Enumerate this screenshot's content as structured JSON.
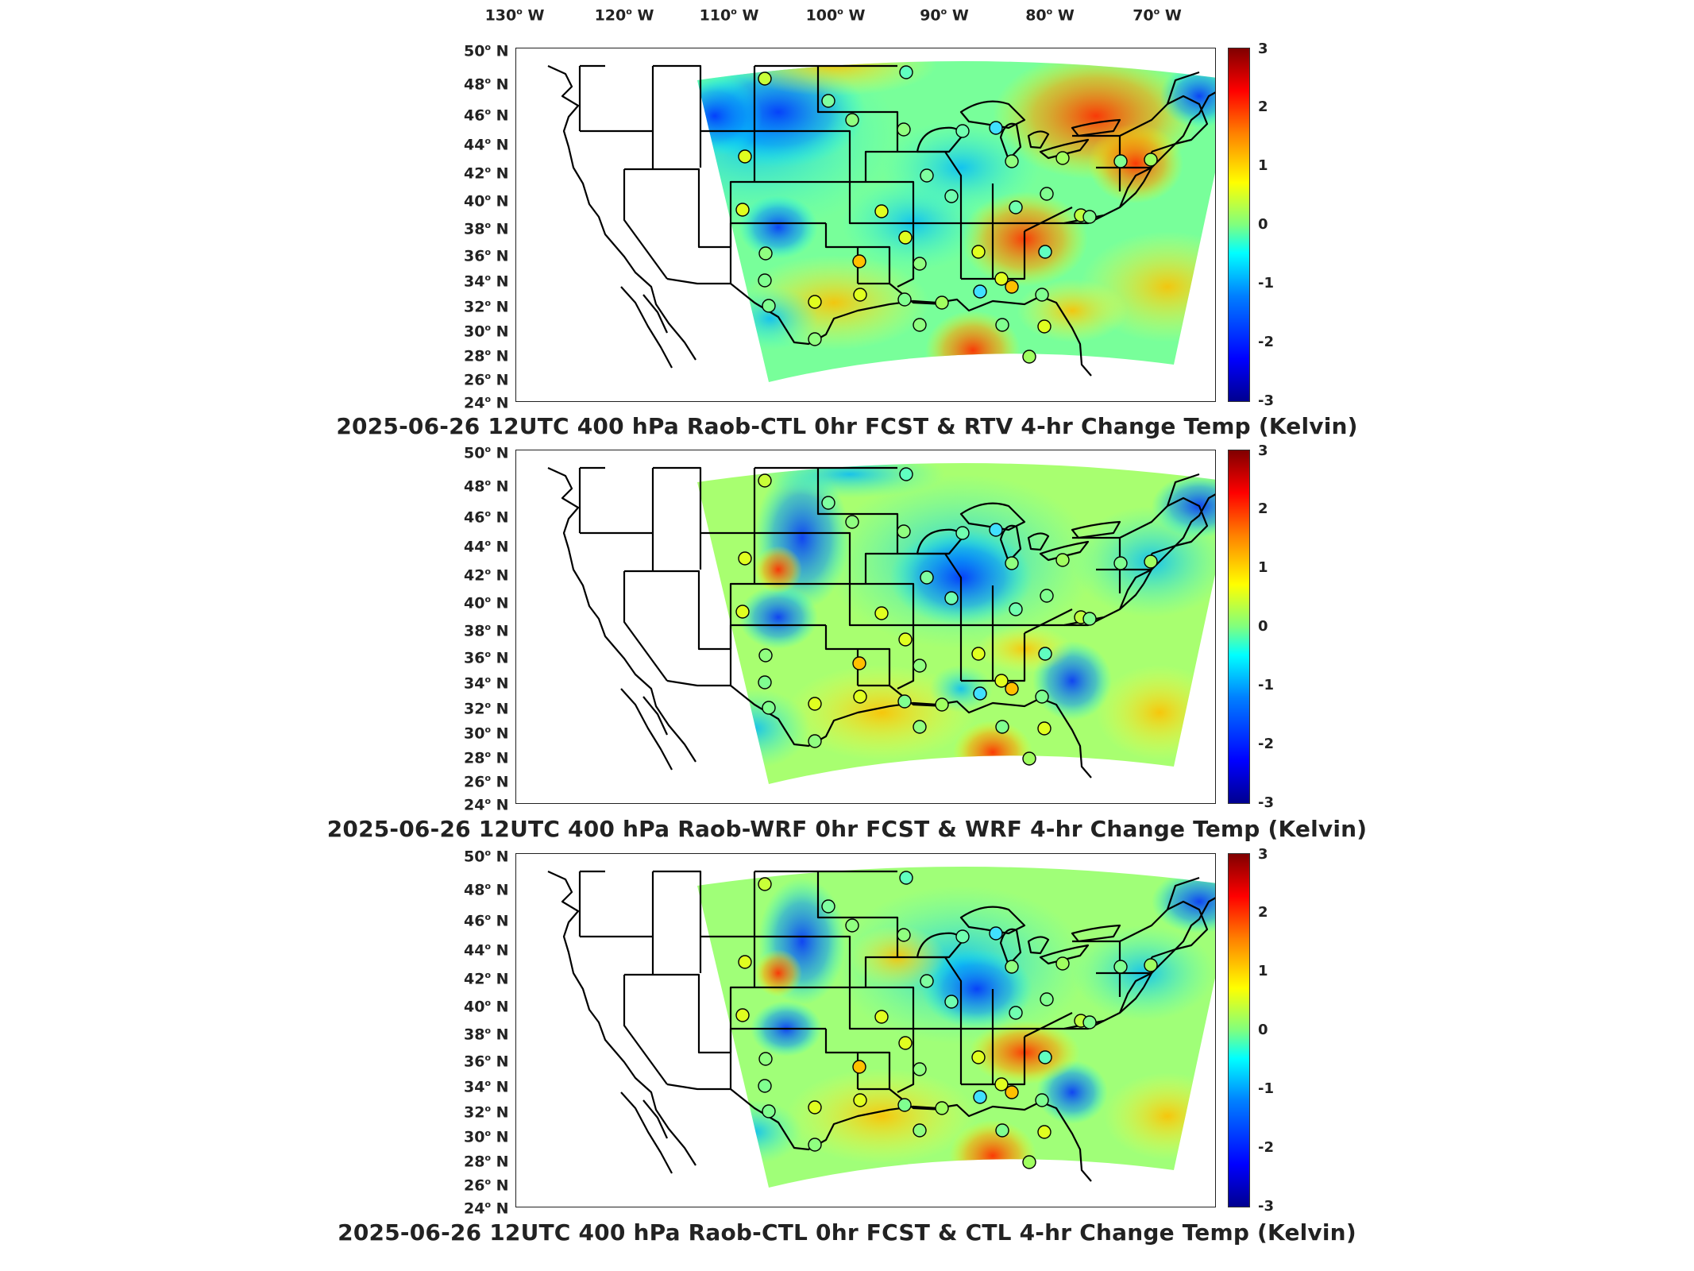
{
  "longitude_labels": [
    "130",
    "120",
    "110",
    "100",
    "90",
    "80",
    "70"
  ],
  "longitude_hemisphere": "W",
  "latitude_labels": [
    "50",
    "48",
    "46",
    "44",
    "42",
    "40",
    "38",
    "36",
    "34",
    "32",
    "30",
    "28",
    "26",
    "24"
  ],
  "latitude_hemisphere": "N",
  "degree_symbol": "o",
  "colorbar": {
    "ticks": [
      "3",
      "2",
      "1",
      "0",
      "-1",
      "-2",
      "-3"
    ],
    "colormap": "jet",
    "range": [
      -3,
      3
    ],
    "colors": [
      "#00008f",
      "#0000ff",
      "#0080ff",
      "#00ffff",
      "#7fff7f",
      "#ffff00",
      "#ff8000",
      "#ff0000",
      "#800000"
    ]
  },
  "panels": [
    {
      "title": "2025-06-26 12UTC 400 hPa Raob-CTL 0hr FCST & RTV 4-hr Change Temp (Kelvin)"
    },
    {
      "title": "2025-06-26 12UTC 400 hPa Raob-WRF 0hr FCST & WRF 4-hr Change Temp (Kelvin)"
    },
    {
      "title": "2025-06-26 12UTC 400 hPa Raob-CTL 0hr FCST & CTL 4-hr Change Temp (Kelvin)"
    }
  ]
}
